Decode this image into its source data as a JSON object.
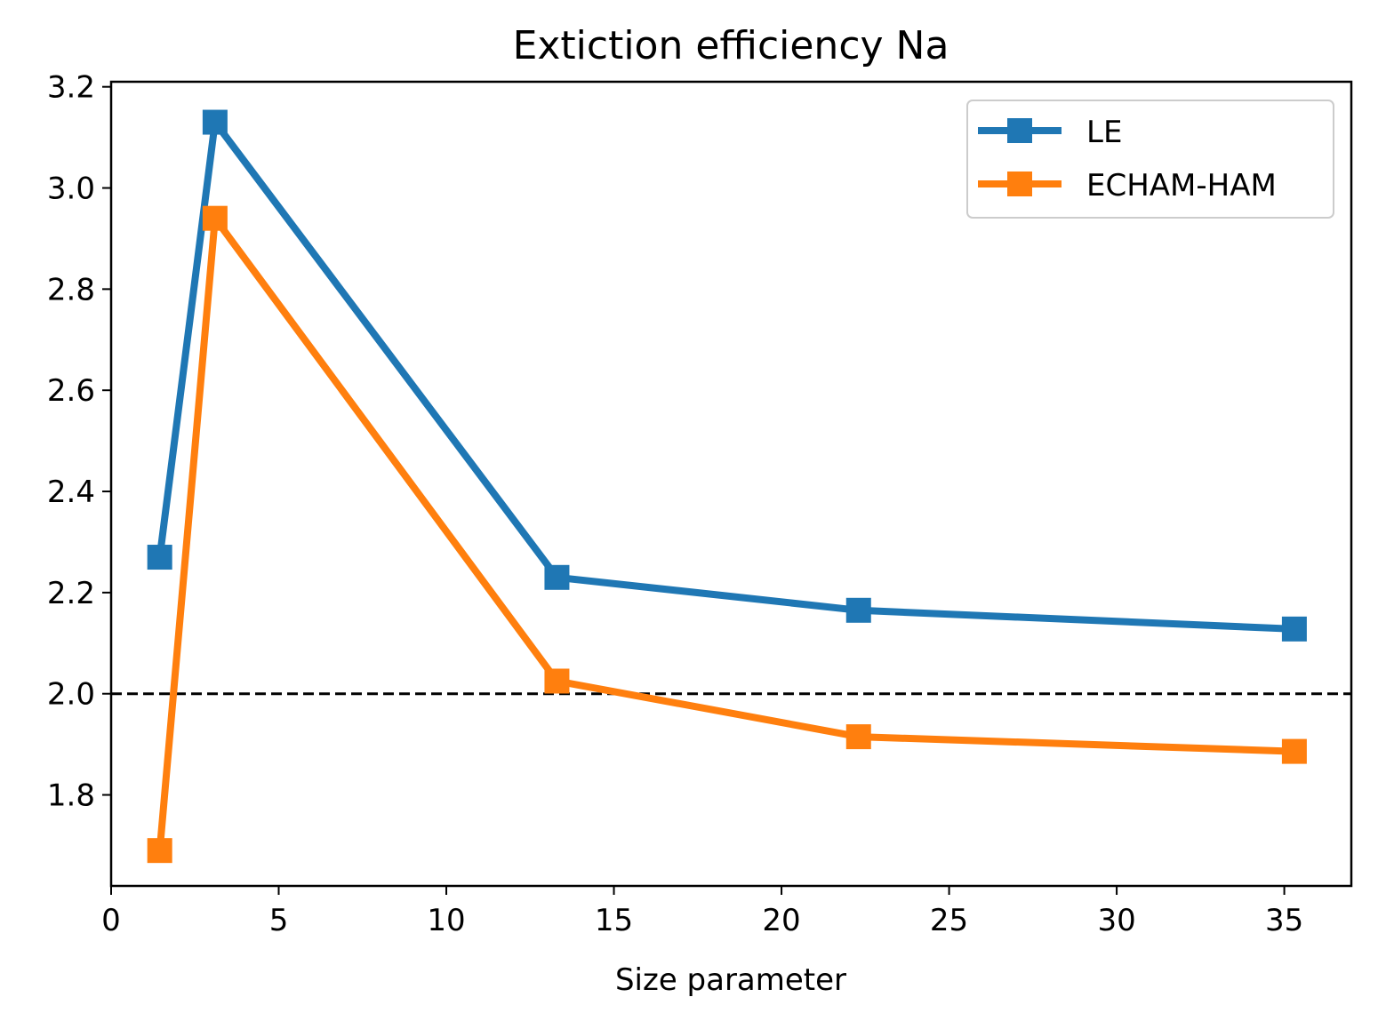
{
  "chart_data": {
    "type": "line",
    "title": "Extiction efficiency Na",
    "xlabel": "Size parameter",
    "ylabel": "",
    "xlim": [
      0,
      37
    ],
    "ylim": [
      1.62,
      3.21
    ],
    "xticks": [
      0,
      5,
      10,
      15,
      20,
      25,
      30,
      35
    ],
    "yticks": [
      1.8,
      2.0,
      2.2,
      2.4,
      2.6,
      2.8,
      3.0,
      3.2
    ],
    "xtick_labels": [
      "0",
      "5",
      "10",
      "15",
      "20",
      "25",
      "30",
      "35"
    ],
    "ytick_labels": [
      "1.8",
      "2.0",
      "2.2",
      "2.4",
      "2.6",
      "2.8",
      "3.0",
      "3.2"
    ],
    "grid": false,
    "legend_position": "top-right",
    "reference_line": {
      "y": 2.0,
      "style": "dashed",
      "color": "#000000"
    },
    "marker": "square",
    "series": [
      {
        "name": "LE",
        "color": "#1f77b4",
        "x": [
          1.45,
          3.1,
          13.3,
          22.3,
          35.3
        ],
        "y": [
          2.27,
          3.13,
          2.23,
          2.165,
          2.128
        ]
      },
      {
        "name": "ECHAM-HAM",
        "color": "#ff7f0e",
        "x": [
          1.45,
          3.1,
          13.3,
          22.3,
          35.3
        ],
        "y": [
          1.69,
          2.94,
          2.025,
          1.915,
          1.886
        ]
      }
    ]
  }
}
